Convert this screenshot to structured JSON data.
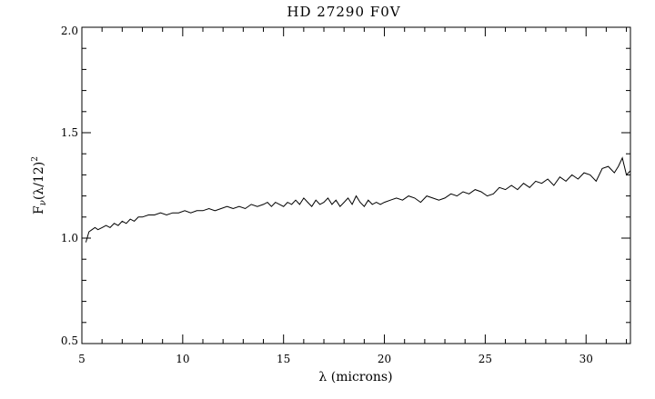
{
  "chart_data": {
    "type": "line",
    "title": "HD 27290 F0V",
    "xlabel": "λ (microns)",
    "ylabel": "F",
    "ylabel_sub": "ν",
    "ylabel_rest": "(λ/12)",
    "ylabel_sup": "2",
    "xlim": [
      5,
      32.2
    ],
    "ylim": [
      0.5,
      2.0
    ],
    "x_ticks": [
      5,
      10,
      15,
      20,
      25,
      30
    ],
    "x_tick_labels": [
      "5",
      "10",
      "15",
      "20",
      "25",
      "30"
    ],
    "y_ticks": [
      0.5,
      1.0,
      1.5,
      2.0
    ],
    "y_tick_labels": [
      "0.5",
      "1.0",
      "1.5",
      "2.0"
    ],
    "grid": false,
    "legend": "none",
    "series": [
      {
        "color": "#000000",
        "x": [
          5.2,
          5.35,
          5.5,
          5.65,
          5.8,
          6.0,
          6.2,
          6.4,
          6.6,
          6.8,
          7.0,
          7.2,
          7.4,
          7.6,
          7.8,
          8.0,
          8.3,
          8.6,
          8.9,
          9.2,
          9.5,
          9.8,
          10.1,
          10.4,
          10.7,
          11.0,
          11.3,
          11.6,
          11.9,
          12.2,
          12.5,
          12.8,
          13.1,
          13.4,
          13.7,
          14.0,
          14.2,
          14.4,
          14.6,
          14.8,
          15.0,
          15.2,
          15.4,
          15.6,
          15.8,
          16.0,
          16.2,
          16.4,
          16.6,
          16.8,
          17.0,
          17.2,
          17.4,
          17.6,
          17.8,
          18.0,
          18.2,
          18.4,
          18.6,
          18.8,
          19.0,
          19.2,
          19.4,
          19.6,
          19.8,
          20.0,
          20.3,
          20.6,
          20.9,
          21.2,
          21.5,
          21.8,
          22.1,
          22.4,
          22.7,
          23.0,
          23.3,
          23.6,
          23.9,
          24.2,
          24.5,
          24.8,
          25.1,
          25.4,
          25.7,
          26.0,
          26.3,
          26.6,
          26.9,
          27.2,
          27.5,
          27.8,
          28.1,
          28.4,
          28.7,
          29.0,
          29.3,
          29.6,
          29.9,
          30.2,
          30.5,
          30.8,
          31.1,
          31.4,
          31.6,
          31.8,
          32.0,
          32.2
        ],
        "y": [
          0.98,
          1.03,
          1.04,
          1.05,
          1.04,
          1.05,
          1.06,
          1.05,
          1.07,
          1.06,
          1.08,
          1.07,
          1.09,
          1.08,
          1.1,
          1.1,
          1.11,
          1.11,
          1.12,
          1.11,
          1.12,
          1.12,
          1.13,
          1.12,
          1.13,
          1.13,
          1.14,
          1.13,
          1.14,
          1.15,
          1.14,
          1.15,
          1.14,
          1.16,
          1.15,
          1.16,
          1.17,
          1.15,
          1.17,
          1.16,
          1.15,
          1.17,
          1.16,
          1.18,
          1.16,
          1.19,
          1.17,
          1.15,
          1.18,
          1.16,
          1.17,
          1.19,
          1.16,
          1.18,
          1.15,
          1.17,
          1.19,
          1.16,
          1.2,
          1.17,
          1.15,
          1.18,
          1.16,
          1.17,
          1.16,
          1.17,
          1.18,
          1.19,
          1.18,
          1.2,
          1.19,
          1.17,
          1.2,
          1.19,
          1.18,
          1.19,
          1.21,
          1.2,
          1.22,
          1.21,
          1.23,
          1.22,
          1.2,
          1.21,
          1.24,
          1.23,
          1.25,
          1.23,
          1.26,
          1.24,
          1.27,
          1.26,
          1.28,
          1.25,
          1.29,
          1.27,
          1.3,
          1.28,
          1.31,
          1.3,
          1.27,
          1.33,
          1.34,
          1.31,
          1.34,
          1.38,
          1.3,
          1.32
        ]
      }
    ]
  }
}
